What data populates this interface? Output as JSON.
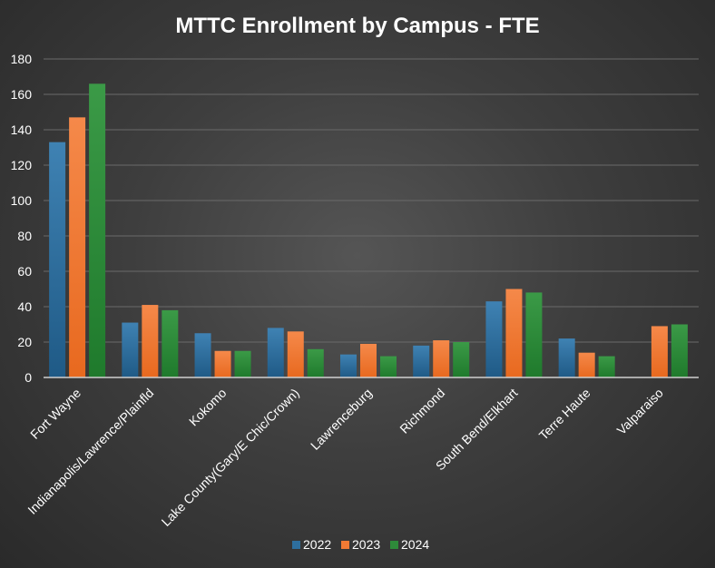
{
  "chart_data": {
    "type": "bar",
    "title": "MTTC Enrollment by Campus - FTE",
    "xlabel": "",
    "ylabel": "",
    "ylim": [
      0,
      180
    ],
    "y_ticks": [
      0,
      20,
      40,
      60,
      80,
      100,
      120,
      140,
      160,
      180
    ],
    "grid": true,
    "legend_position": "bottom",
    "categories": [
      "Fort Wayne",
      "Indianapolis/Lawrence/Plainfld",
      "Kokomo",
      "Lake County(Gary/E Chic/Crown)",
      "Lawrenceburg",
      "Richmond",
      "South Bend/Elkhart",
      "Terre Haute",
      "Valparaiso"
    ],
    "series": [
      {
        "name": "2022",
        "color": "#2e6f9e",
        "values": [
          133,
          31,
          25,
          28,
          13,
          18,
          43,
          22,
          0
        ]
      },
      {
        "name": "2023",
        "color": "#f07a34",
        "values": [
          147,
          41,
          15,
          26,
          19,
          21,
          50,
          14,
          29
        ]
      },
      {
        "name": "2024",
        "color": "#2e8a3a",
        "values": [
          166,
          38,
          15,
          16,
          12,
          20,
          48,
          12,
          30
        ]
      }
    ]
  }
}
